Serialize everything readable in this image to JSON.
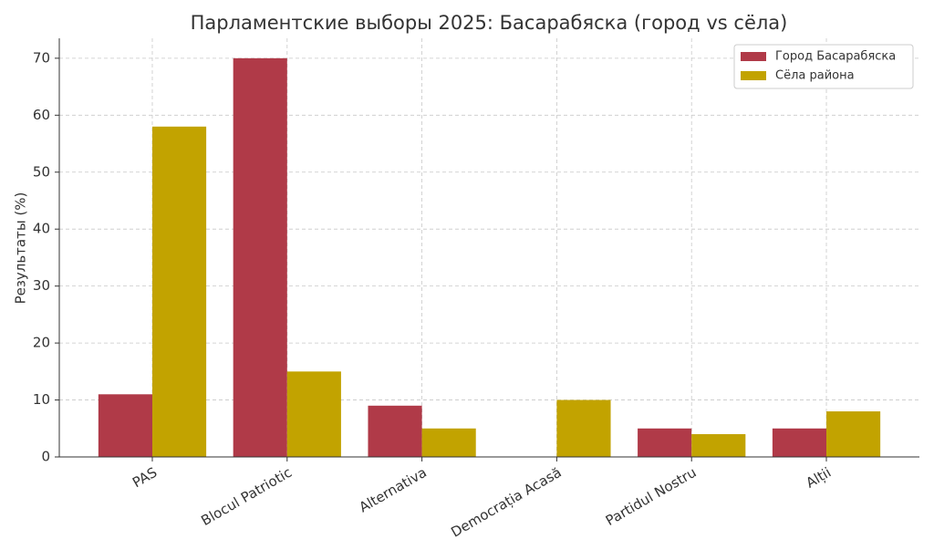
{
  "chart_data": {
    "type": "bar",
    "title": "Парламентские выборы 2025: Басарабяска (город vs сёла)",
    "y_label": "Результаты (%)",
    "categories": [
      "PAS",
      "Blocul Patriotic",
      "Alternativa",
      "Democrația Acasă",
      "Partidul Nostru",
      "Alții"
    ],
    "series": [
      {
        "name": "Город Басарабяска",
        "color": "#b03a48",
        "values": [
          11,
          70,
          9,
          0,
          5,
          5
        ]
      },
      {
        "name": "Сёла района",
        "color": "#c2a300",
        "values": [
          58,
          15,
          5,
          10,
          4,
          8
        ]
      }
    ],
    "ylim": [
      0,
      73.5
    ],
    "yticks": [
      0,
      10,
      20,
      30,
      40,
      50,
      60,
      70
    ],
    "grid": true,
    "legend": "upper right"
  }
}
